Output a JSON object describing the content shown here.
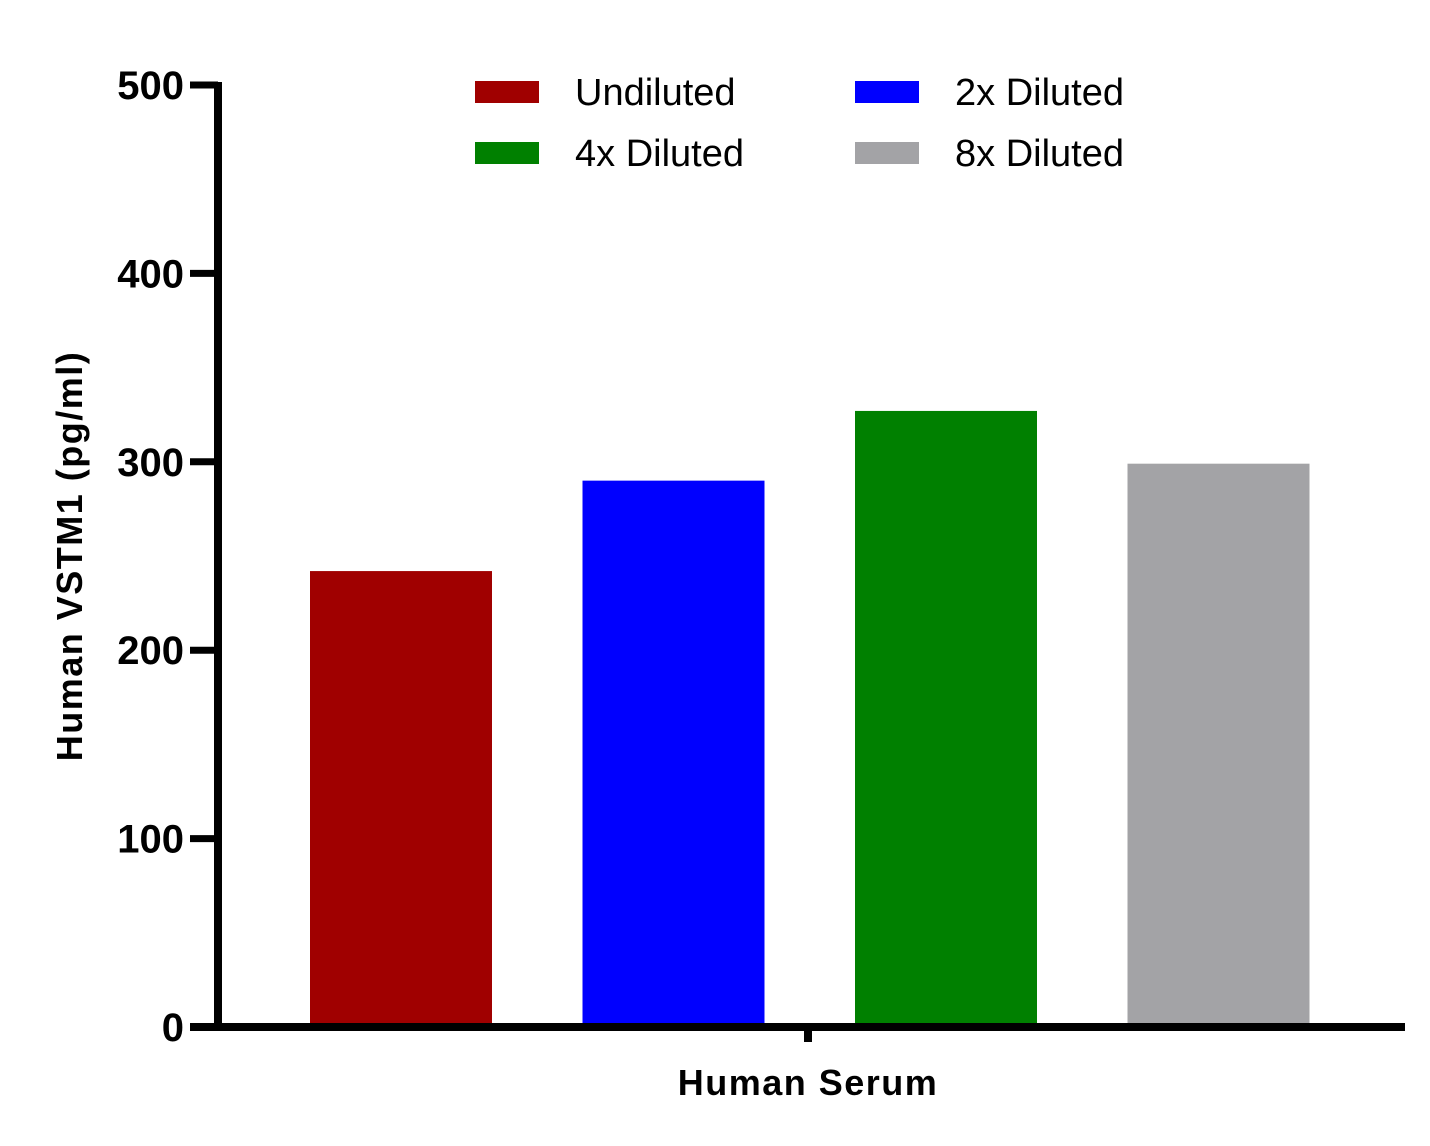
{
  "chart_data": {
    "type": "bar",
    "categories": [
      "Human Serum"
    ],
    "series": [
      {
        "name": "Undiluted",
        "values": [
          242
        ],
        "color": "#a00000"
      },
      {
        "name": "2x Diluted",
        "values": [
          290
        ],
        "color": "#0000ff"
      },
      {
        "name": "4x Diluted",
        "values": [
          327
        ],
        "color": "#008000"
      },
      {
        "name": "8x Diluted",
        "values": [
          299
        ],
        "color": "#a3a3a6"
      }
    ],
    "xlabel": "Human Serum",
    "ylabel": "Human VSTM1 (pg/ml)",
    "ylim": [
      0,
      500
    ],
    "yticks": [
      0,
      100,
      200,
      300,
      400,
      500
    ],
    "grid": false,
    "legend": {
      "position": "top",
      "columns": 2
    }
  }
}
